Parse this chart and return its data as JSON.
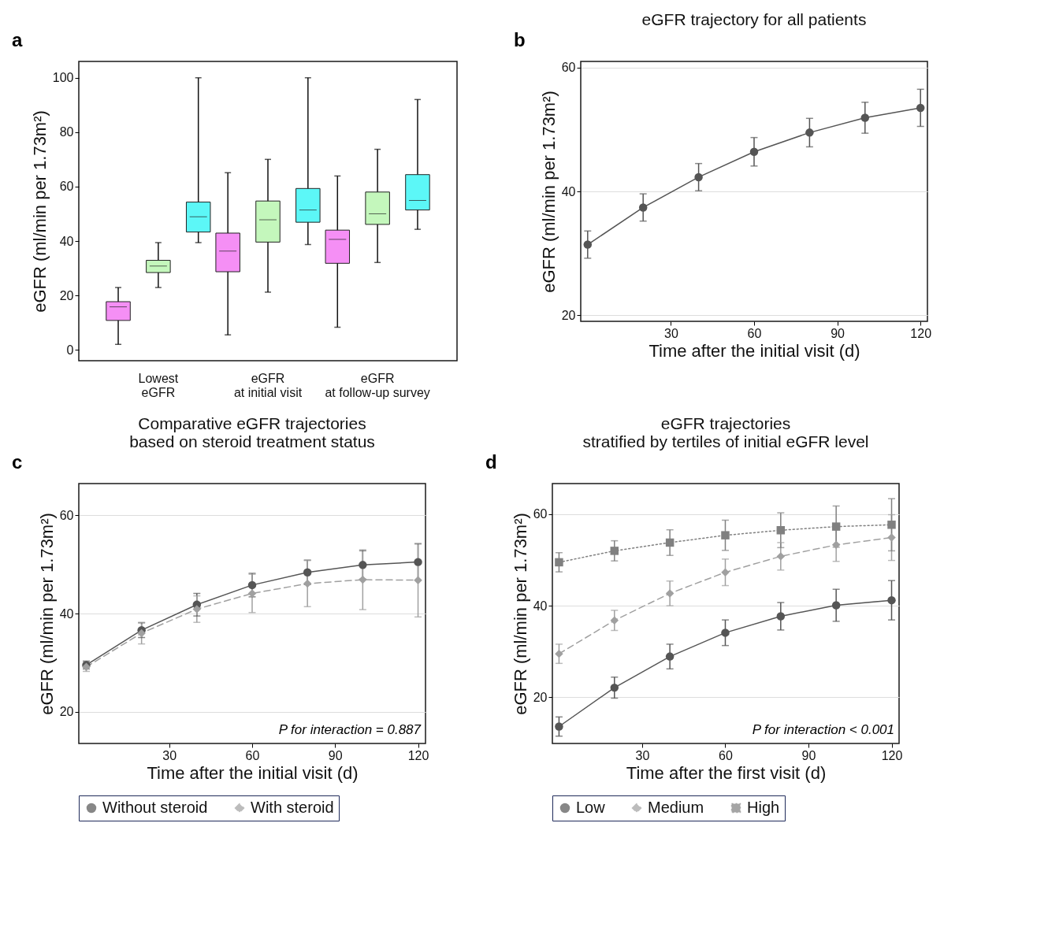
{
  "chart_data": [
    {
      "type": "box",
      "ylabel": "eGFR (ml/min per 1.73m²)",
      "categories": [
        "Lowest eGFR",
        "eGFR at initial visit",
        "eGFR at follow-up survey"
      ],
      "ylim": [
        -4,
        106
      ],
      "yticks": [
        0,
        20,
        40,
        60,
        80,
        100
      ],
      "annotations": [
        "a"
      ],
      "series": [
        {
          "color": "#f58ff5",
          "boxes": [
            {
              "low": 2.0,
              "q1": 10.8,
              "median": 15.8,
              "q3": 17.7,
              "high": 22.9
            },
            {
              "low": 5.5,
              "q1": 28.7,
              "median": 36.3,
              "q3": 42.9,
              "high": 65.1
            },
            {
              "low": 8.3,
              "q1": 31.8,
              "median": 40.6,
              "q3": 44.0,
              "high": 63.9
            }
          ]
        },
        {
          "color": "#c4f7bc",
          "boxes": [
            {
              "low": 22.9,
              "q1": 28.4,
              "median": 30.8,
              "q3": 32.9,
              "high": 39.4
            },
            {
              "low": 21.2,
              "q1": 39.6,
              "median": 47.8,
              "q3": 54.7,
              "high": 70.0
            },
            {
              "low": 32.1,
              "q1": 46.1,
              "median": 50.0,
              "q3": 58.0,
              "high": 73.7
            }
          ]
        },
        {
          "color": "#5cf7f7",
          "boxes": [
            {
              "low": 39.4,
              "q1": 43.3,
              "median": 48.9,
              "q3": 54.3,
              "high": 100
            },
            {
              "low": 38.7,
              "q1": 46.9,
              "median": 51.4,
              "q3": 59.3,
              "high": 100
            },
            {
              "low": 44.3,
              "q1": 51.4,
              "median": 54.9,
              "q3": 64.4,
              "high": 92.0
            }
          ]
        }
      ]
    },
    {
      "type": "line",
      "title": "eGFR trajectory for all patients",
      "xlabel": "Time after the initial visit (d)",
      "ylabel": "eGFR (ml/min per 1.73m²)",
      "x": [
        0,
        20,
        40,
        60,
        80,
        100,
        120
      ],
      "xlim": [
        -2.5,
        122.5
      ],
      "xticks": [
        30,
        60,
        90,
        120
      ],
      "ylim": [
        19,
        61
      ],
      "yticks": [
        20,
        40,
        60
      ],
      "grid": "y",
      "marker": "circle",
      "line_style": "solid",
      "annotations": [
        "b"
      ],
      "series": [
        {
          "color": "#555555",
          "values": [
            31.4,
            37.4,
            42.3,
            46.4,
            49.5,
            51.9,
            53.5
          ],
          "errors": [
            2.2,
            2.2,
            2.2,
            2.3,
            2.3,
            2.5,
            3.0
          ]
        }
      ]
    },
    {
      "type": "line",
      "title": "Comparative eGFR trajectories\nbased on steroid treatment status",
      "xlabel": "Time after the initial visit (d)",
      "ylabel": "eGFR (ml/min per 1.73m²)",
      "x": [
        0,
        20,
        40,
        60,
        80,
        100,
        120
      ],
      "xlim": [
        -2.7,
        122.7
      ],
      "xticks": [
        30,
        60,
        90,
        120
      ],
      "ylim": [
        13.5,
        66.5
      ],
      "yticks": [
        20,
        40,
        60
      ],
      "grid": "y",
      "legend": "bottom",
      "annotations": [
        "c",
        "P for interaction = 0.887"
      ],
      "series": [
        {
          "name": "Without steroid",
          "color": "#555555",
          "marker": "circle",
          "line_style": "solid",
          "values": [
            29.5,
            36.6,
            41.8,
            45.8,
            48.4,
            49.9,
            50.5
          ],
          "errors": [
            0.8,
            1.5,
            2.3,
            2.4,
            2.5,
            2.9,
            3.7
          ]
        },
        {
          "name": "With steroid",
          "color": "#a0a0a0",
          "marker": "diamond",
          "line_style": "dashed",
          "values": [
            29.1,
            36.0,
            40.9,
            44.1,
            46.1,
            46.9,
            46.8
          ],
          "errors": [
            0.9,
            2.2,
            2.7,
            3.9,
            4.7,
            6.1,
            7.5
          ]
        }
      ]
    },
    {
      "type": "line",
      "title": "eGFR trajectories\nstratified by tertiles of initial eGFR level",
      "xlabel": "Time after the first visit (d)",
      "ylabel": "eGFR (ml/min per 1.73m²)",
      "x": [
        0,
        20,
        40,
        60,
        80,
        100,
        120
      ],
      "xlim": [
        -2.4,
        122.7
      ],
      "xticks": [
        30,
        60,
        90,
        120
      ],
      "ylim": [
        9.9,
        66.7
      ],
      "yticks": [
        20,
        40,
        60
      ],
      "grid": "y",
      "legend": "bottom",
      "annotations": [
        "d",
        "P for interaction < 0.001"
      ],
      "series": [
        {
          "name": "Low",
          "color": "#555555",
          "marker": "circle",
          "line_style": "solid",
          "values": [
            13.6,
            22.1,
            28.9,
            34.1,
            37.7,
            40.1,
            41.2
          ],
          "errors": [
            2.1,
            2.3,
            2.7,
            2.8,
            3.0,
            3.5,
            4.3
          ]
        },
        {
          "name": "Medium",
          "color": "#a0a0a0",
          "marker": "diamond",
          "line_style": "dashed",
          "values": [
            29.5,
            36.8,
            42.7,
            47.3,
            50.8,
            53.3,
            54.9
          ],
          "errors": [
            2.1,
            2.2,
            2.7,
            2.9,
            3.0,
            3.6,
            5.0
          ]
        },
        {
          "name": "High",
          "color": "#808080",
          "marker": "square",
          "line_style": "dotted",
          "values": [
            49.5,
            52.0,
            53.8,
            55.4,
            56.5,
            57.3,
            57.7
          ],
          "errors": [
            2.1,
            2.2,
            2.8,
            3.3,
            3.8,
            4.5,
            5.7
          ]
        }
      ]
    }
  ]
}
